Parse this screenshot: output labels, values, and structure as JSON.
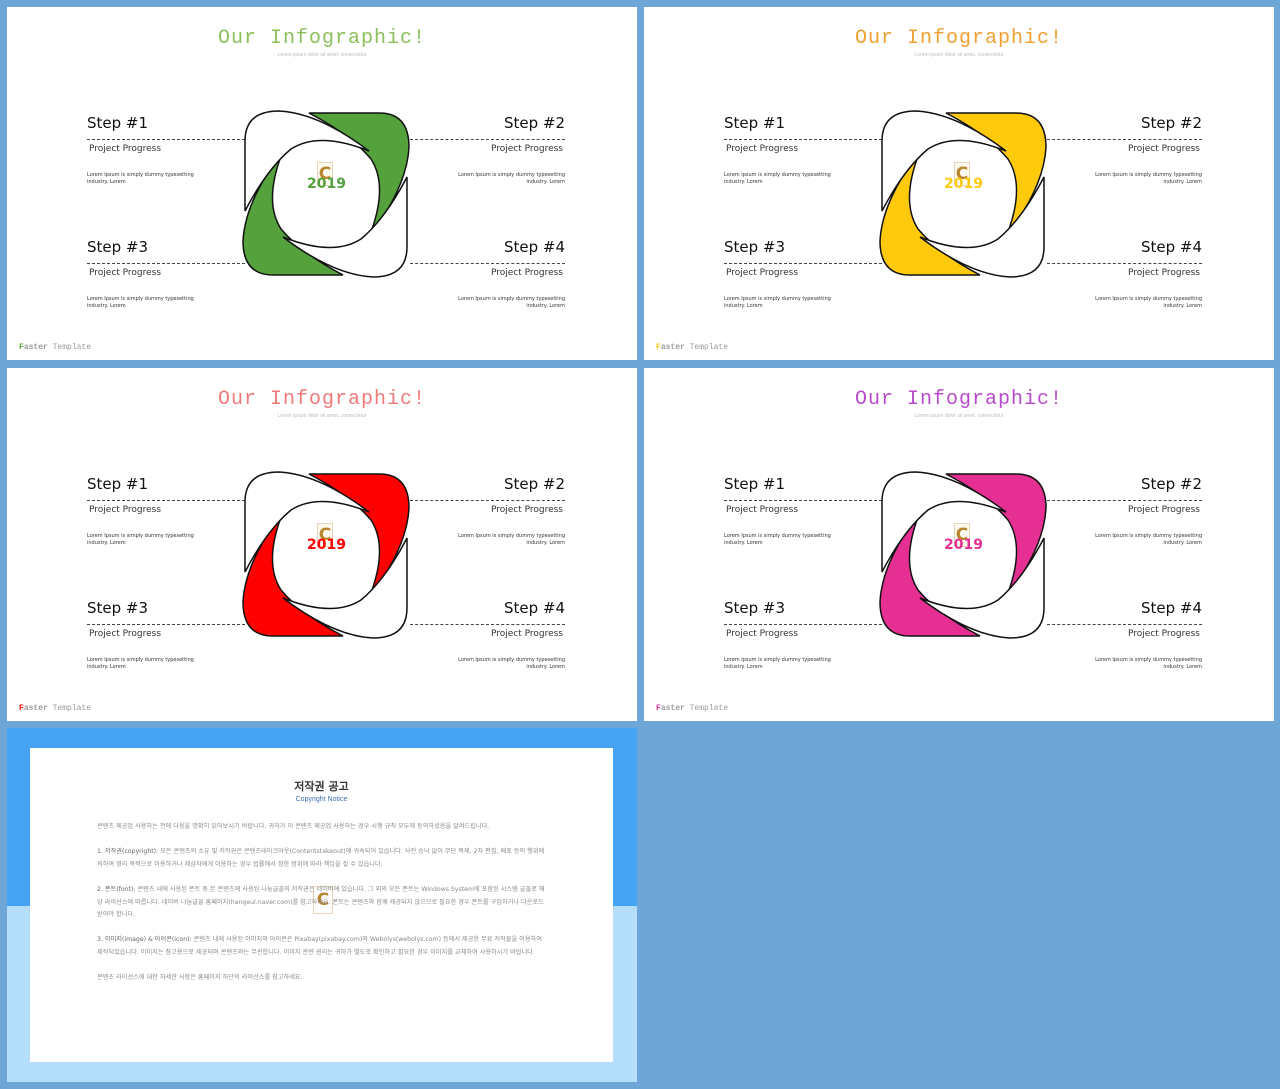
{
  "slides": [
    {
      "title": "Our Infographic!",
      "subtitle": "Lorem ipsum dolor sit amet, consectetur",
      "accent": "#55a23d",
      "title_color": "#8cbf5a",
      "logo_text": "C",
      "logo_year": "2019",
      "steps": [
        {
          "name": "Step #1",
          "progress": "Project Progress",
          "desc": "Lorem Ipsum is simply dummy typesetting industry. Lorem"
        },
        {
          "name": "Step #2",
          "progress": "Project Progress",
          "desc": "Lorem Ipsum is simply dummy typesetting industry. Lorem"
        },
        {
          "name": "Step #3",
          "progress": "Project Progress",
          "desc": "Lorem Ipsum is simply dummy typesetting industry. Lorem"
        },
        {
          "name": "Step #4",
          "progress": "Project Progress",
          "desc": "Lorem Ipsum is simply dummy typesetting industry. Lorem"
        }
      ],
      "footer_first": "F",
      "footer_rest1": "aster",
      "footer_rest2": " Template"
    },
    {
      "title": "Our Infographic!",
      "subtitle": "Lorem ipsum dolor sit amet, consectetur",
      "accent": "#ffc90c",
      "title_color": "#f0a030",
      "logo_text": "C",
      "logo_year": "2019",
      "steps": [
        {
          "name": "Step #1",
          "progress": "Project Progress",
          "desc": "Lorem Ipsum is simply dummy typesetting industry. Lorem"
        },
        {
          "name": "Step #2",
          "progress": "Project Progress",
          "desc": "Lorem Ipsum is simply dummy typesetting industry. Lorem"
        },
        {
          "name": "Step #3",
          "progress": "Project Progress",
          "desc": "Lorem Ipsum is simply dummy typesetting industry. Lorem"
        },
        {
          "name": "Step #4",
          "progress": "Project Progress",
          "desc": "Lorem Ipsum is simply dummy typesetting industry. Lorem"
        }
      ],
      "footer_first": "F",
      "footer_rest1": "aster",
      "footer_rest2": " Template"
    },
    {
      "title": "Our Infographic!",
      "subtitle": "Lorem ipsum dolor sit amet, consectetur",
      "accent": "#ff0000",
      "title_color": "#f07a7a",
      "logo_text": "C",
      "logo_year": "2019",
      "steps": [
        {
          "name": "Step #1",
          "progress": "Project Progress",
          "desc": "Lorem Ipsum is simply dummy typesetting industry. Lorem"
        },
        {
          "name": "Step #2",
          "progress": "Project Progress",
          "desc": "Lorem Ipsum is simply dummy typesetting industry. Lorem"
        },
        {
          "name": "Step #3",
          "progress": "Project Progress",
          "desc": "Lorem Ipsum is simply dummy typesetting industry. Lorem"
        },
        {
          "name": "Step #4",
          "progress": "Project Progress",
          "desc": "Lorem Ipsum is simply dummy typesetting industry. Lorem"
        }
      ],
      "footer_first": "F",
      "footer_rest1": "aster",
      "footer_rest2": " Template"
    },
    {
      "title": "Our Infographic!",
      "subtitle": "Lorem ipsum dolor sit amet, consectetur",
      "accent": "#e52f93",
      "title_color": "#b84bcc",
      "logo_text": "C",
      "logo_year": "2019",
      "steps": [
        {
          "name": "Step #1",
          "progress": "Project Progress",
          "desc": "Lorem Ipsum is simply dummy typesetting industry. Lorem"
        },
        {
          "name": "Step #2",
          "progress": "Project Progress",
          "desc": "Lorem Ipsum is simply dummy typesetting industry. Lorem"
        },
        {
          "name": "Step #3",
          "progress": "Project Progress",
          "desc": "Lorem Ipsum is simply dummy typesetting industry. Lorem"
        },
        {
          "name": "Step #4",
          "progress": "Project Progress",
          "desc": "Lorem Ipsum is simply dummy typesetting industry. Lorem"
        }
      ],
      "footer_first": "F",
      "footer_rest1": "aster",
      "footer_rest2": " Template"
    }
  ],
  "notice": {
    "title": "저작권 공고",
    "subtitle": "Copyright Notice",
    "logo_text": "C",
    "intro": "콘텐츠 제공업 사용하는 전에 다음을 명확히 읽어보시기 바랍니다. 귀하가 이 콘텐츠 제공업 사용하는 경우 시행 규칙 모두에 동의하셨음을 알려드립니다.",
    "p1_head": "1. 저작권(copyright):",
    "p1_body": " 모든 콘텐츠의 소유 및 저작권은 콘텐츠테이크아웃(Contentstakeout)에 귀속되어 있습니다. 사전 승낙 없이 무단 복제, 2차 편집, 배포 등의 행위에 의하여 영리 목적으로 이용하거나 제삼자에게 이용하는 경우 법률에서 정한 범위에 따라 책임을 질 수 있습니다.",
    "p2_head": "2. 폰트(font):",
    "p2_body": " 콘텐츠 내에 사용된 폰트 중 본 콘텐츠에 사용된 나눔글꼴의 저작권은 네이버에 있습니다. 그 외의 모든 폰트는 Windows System에 포함된 시스템 글꼴로 해당 라이선스에 따릅니다. 네이버 나눔글꼴 홈페이지(hangeul.naver.com)를 참고하세요. 폰트는 콘텐츠와 함께 제공되지 않으므로 필요한 경우 폰트를 구입하거나 다운로드 받아야 합니다.",
    "p3_head": "3. 이미지(image) & 아이콘(icon):",
    "p3_body": " 콘텐츠 내에 사용된 이미지와 아이콘은 Pixabay(pixabay.com)와 Webolys(webolys.com) 등에서 제공한 무료 저작물을 이용하여 제작되었습니다. 이미지는 참고용으로 제공되며 콘텐츠와는 무관합니다. 이미지 관련 권리는 귀하가 별도로 확인하고 필요한 경우 이미지를 교체하여 사용하시기 바랍니다.",
    "outro": "콘텐츠 라이선스에 대한 자세한 사항은 홈페이지 하단의 라이선스를 참고하세요."
  }
}
